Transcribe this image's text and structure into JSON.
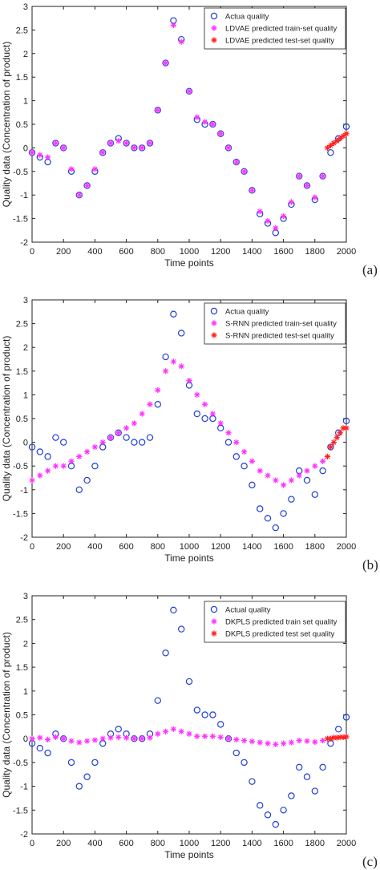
{
  "figure": {
    "panel_tags": [
      "(a)",
      "(b)",
      "(c)"
    ],
    "colors": {
      "actual": "#1f3fd6",
      "train": "#ff33ff",
      "test": "#ff2020",
      "axis": "#222222"
    }
  },
  "chart_data": [
    {
      "type": "scatter",
      "panel": "(a)",
      "xlabel": "Time points",
      "ylabel": "Quality data (Concentration of product)",
      "xlim": [
        0,
        2000
      ],
      "ylim": [
        -2,
        3
      ],
      "xticks": [
        0,
        200,
        400,
        600,
        800,
        1000,
        1200,
        1400,
        1600,
        1800,
        2000
      ],
      "yticks": [
        -2,
        -1.5,
        -1,
        -0.5,
        0,
        0.5,
        1,
        1.5,
        2,
        2.5,
        3
      ],
      "legend_position": "top-right",
      "legend": [
        "Actua quality",
        "LDVAE predicted train-set quality",
        "LDVAE predicted test-set quality"
      ],
      "series": [
        {
          "name": "Actua quality",
          "marker": "circle",
          "x": [
            0,
            50,
            100,
            150,
            200,
            250,
            300,
            350,
            400,
            450,
            500,
            550,
            600,
            650,
            700,
            750,
            800,
            850,
            900,
            950,
            1000,
            1050,
            1100,
            1150,
            1200,
            1250,
            1300,
            1350,
            1400,
            1450,
            1500,
            1550,
            1600,
            1650,
            1700,
            1750,
            1800,
            1850,
            1900,
            1950,
            2000
          ],
          "y": [
            -0.1,
            -0.2,
            -0.3,
            0.1,
            0.0,
            -0.5,
            -1.0,
            -0.8,
            -0.5,
            -0.1,
            0.1,
            0.2,
            0.1,
            0.0,
            0.0,
            0.1,
            0.8,
            1.8,
            2.7,
            2.3,
            1.2,
            0.6,
            0.5,
            0.5,
            0.3,
            0.0,
            -0.3,
            -0.5,
            -0.9,
            -1.4,
            -1.6,
            -1.8,
            -1.5,
            -1.2,
            -0.6,
            -0.8,
            -1.1,
            -0.6,
            -0.1,
            0.2,
            0.45
          ]
        },
        {
          "name": "LDVAE predicted train-set quality",
          "marker": "star",
          "x": [
            0,
            50,
            100,
            150,
            200,
            250,
            300,
            350,
            400,
            450,
            500,
            550,
            600,
            650,
            700,
            750,
            800,
            850,
            900,
            950,
            1000,
            1050,
            1100,
            1150,
            1200,
            1250,
            1300,
            1350,
            1400,
            1450,
            1500,
            1550,
            1600,
            1650,
            1700,
            1750,
            1800,
            1850
          ],
          "y": [
            -0.1,
            -0.15,
            -0.2,
            0.1,
            0.0,
            -0.45,
            -1.0,
            -0.8,
            -0.45,
            -0.1,
            0.1,
            0.15,
            0.1,
            0.0,
            0.0,
            0.1,
            0.8,
            1.8,
            2.6,
            2.25,
            1.2,
            0.65,
            0.55,
            0.5,
            0.3,
            0.0,
            -0.3,
            -0.5,
            -0.9,
            -1.35,
            -1.55,
            -1.7,
            -1.45,
            -1.15,
            -0.6,
            -0.8,
            -1.05,
            -0.6
          ]
        },
        {
          "name": "LDVAE predicted test-set quality",
          "marker": "star",
          "x": [
            1880,
            1900,
            1920,
            1940,
            1960,
            1980,
            2000
          ],
          "y": [
            0.0,
            0.05,
            0.1,
            0.15,
            0.2,
            0.25,
            0.3
          ]
        }
      ]
    },
    {
      "type": "scatter",
      "panel": "(b)",
      "xlabel": "Time points",
      "ylabel": "Quality data (Concentration of product)",
      "xlim": [
        0,
        2000
      ],
      "ylim": [
        -2,
        3
      ],
      "xticks": [
        0,
        200,
        400,
        600,
        800,
        1000,
        1200,
        1400,
        1600,
        1800,
        2000
      ],
      "yticks": [
        -2,
        -1.5,
        -1,
        -0.5,
        0,
        0.5,
        1,
        1.5,
        2,
        2.5,
        3
      ],
      "legend_position": "top-right",
      "legend": [
        "Actua quality",
        "S-RNN predicted train-set quality",
        "S-RNN predicted test-set quality"
      ],
      "series": [
        {
          "name": "Actua quality",
          "marker": "circle",
          "x": [
            0,
            50,
            100,
            150,
            200,
            250,
            300,
            350,
            400,
            450,
            500,
            550,
            600,
            650,
            700,
            750,
            800,
            850,
            900,
            950,
            1000,
            1050,
            1100,
            1150,
            1200,
            1250,
            1300,
            1350,
            1400,
            1450,
            1500,
            1550,
            1600,
            1650,
            1700,
            1750,
            1800,
            1850,
            1900,
            1950,
            2000
          ],
          "y": [
            -0.1,
            -0.2,
            -0.3,
            0.1,
            0.0,
            -0.5,
            -1.0,
            -0.8,
            -0.5,
            -0.1,
            0.1,
            0.2,
            0.1,
            0.0,
            0.0,
            0.1,
            0.8,
            1.8,
            2.7,
            2.3,
            1.2,
            0.6,
            0.5,
            0.5,
            0.3,
            0.0,
            -0.3,
            -0.5,
            -0.9,
            -1.4,
            -1.6,
            -1.8,
            -1.5,
            -1.2,
            -0.6,
            -0.8,
            -1.1,
            -0.6,
            -0.1,
            0.2,
            0.45
          ]
        },
        {
          "name": "S-RNN predicted train-set quality",
          "marker": "star",
          "x": [
            0,
            50,
            100,
            150,
            200,
            250,
            300,
            350,
            400,
            450,
            500,
            550,
            600,
            650,
            700,
            750,
            800,
            850,
            900,
            950,
            1000,
            1050,
            1100,
            1150,
            1200,
            1250,
            1300,
            1350,
            1400,
            1450,
            1500,
            1550,
            1600,
            1650,
            1700,
            1750,
            1800,
            1850
          ],
          "y": [
            -0.8,
            -0.7,
            -0.6,
            -0.5,
            -0.5,
            -0.4,
            -0.3,
            -0.2,
            -0.1,
            0.0,
            0.1,
            0.2,
            0.3,
            0.4,
            0.6,
            0.8,
            1.1,
            1.5,
            1.7,
            1.6,
            1.3,
            1.0,
            0.8,
            0.6,
            0.4,
            0.2,
            0.0,
            -0.2,
            -0.4,
            -0.6,
            -0.7,
            -0.8,
            -0.9,
            -0.8,
            -0.7,
            -0.6,
            -0.5,
            -0.4
          ]
        },
        {
          "name": "S-RNN predicted test-set quality",
          "marker": "star",
          "x": [
            1880,
            1900,
            1920,
            1940,
            1960,
            1980,
            2000
          ],
          "y": [
            -0.3,
            -0.1,
            0.0,
            0.1,
            0.2,
            0.3,
            0.3
          ]
        }
      ]
    },
    {
      "type": "scatter",
      "panel": "(c)",
      "xlabel": "Time points",
      "ylabel": "Quality data (Concentration of product)",
      "xlim": [
        0,
        2000
      ],
      "ylim": [
        -2,
        3
      ],
      "xticks": [
        0,
        200,
        400,
        600,
        800,
        1000,
        1200,
        1400,
        1600,
        1800,
        2000
      ],
      "yticks": [
        -2,
        -1.5,
        -1,
        -0.5,
        0,
        0.5,
        1,
        1.5,
        2,
        2.5,
        3
      ],
      "legend_position": "top-right",
      "legend": [
        "Actual quality",
        "DKPLS predicted train set quality",
        "DKPLS predicted test set quality"
      ],
      "series": [
        {
          "name": "Actual quality",
          "marker": "circle",
          "x": [
            0,
            50,
            100,
            150,
            200,
            250,
            300,
            350,
            400,
            450,
            500,
            550,
            600,
            650,
            700,
            750,
            800,
            850,
            900,
            950,
            1000,
            1050,
            1100,
            1150,
            1200,
            1250,
            1300,
            1350,
            1400,
            1450,
            1500,
            1550,
            1600,
            1650,
            1700,
            1750,
            1800,
            1850,
            1900,
            1950,
            2000
          ],
          "y": [
            -0.1,
            -0.2,
            -0.3,
            0.1,
            0.0,
            -0.5,
            -1.0,
            -0.8,
            -0.5,
            -0.1,
            0.1,
            0.2,
            0.1,
            0.0,
            0.0,
            0.1,
            0.8,
            1.8,
            2.7,
            2.3,
            1.2,
            0.6,
            0.5,
            0.5,
            0.3,
            0.0,
            -0.3,
            -0.5,
            -0.9,
            -1.4,
            -1.6,
            -1.8,
            -1.5,
            -1.2,
            -0.6,
            -0.8,
            -1.1,
            -0.6,
            -0.1,
            0.2,
            0.45
          ]
        },
        {
          "name": "DKPLS predicted train set quality",
          "marker": "star",
          "x": [
            0,
            50,
            100,
            150,
            200,
            250,
            300,
            350,
            400,
            450,
            500,
            550,
            600,
            650,
            700,
            750,
            800,
            850,
            900,
            950,
            1000,
            1050,
            1100,
            1150,
            1200,
            1250,
            1300,
            1350,
            1400,
            1450,
            1500,
            1550,
            1600,
            1650,
            1700,
            1750,
            1800,
            1850
          ],
          "y": [
            0.0,
            0.02,
            -0.02,
            0.03,
            0.0,
            -0.05,
            -0.08,
            -0.05,
            -0.03,
            0.0,
            0.02,
            0.03,
            0.02,
            0.0,
            0.0,
            0.02,
            0.1,
            0.15,
            0.2,
            0.15,
            0.1,
            0.05,
            0.05,
            0.05,
            0.03,
            0.0,
            -0.02,
            -0.04,
            -0.06,
            -0.08,
            -0.1,
            -0.12,
            -0.1,
            -0.08,
            -0.04,
            -0.05,
            -0.07,
            -0.04
          ]
        },
        {
          "name": "DKPLS predicted test set quality",
          "marker": "star",
          "x": [
            1880,
            1900,
            1920,
            1940,
            1960,
            1980,
            2000
          ],
          "y": [
            0.0,
            0.0,
            0.02,
            0.02,
            0.03,
            0.03,
            0.04
          ]
        }
      ]
    }
  ]
}
